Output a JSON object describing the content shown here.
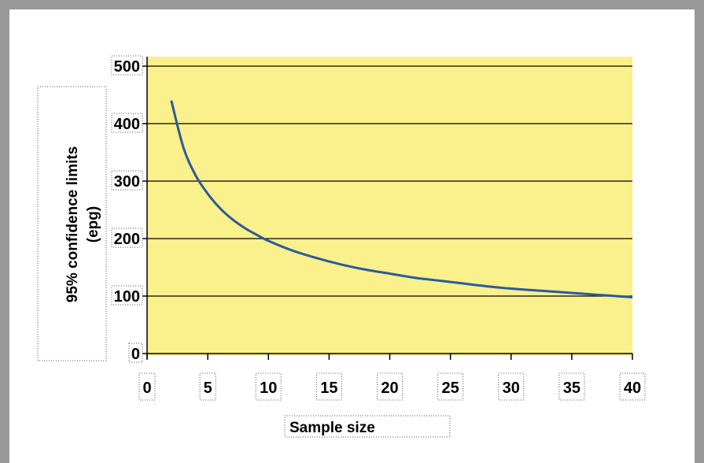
{
  "chart_data": {
    "type": "line",
    "xlabel": "Sample size",
    "ylabel_line1": "95% confidence limits",
    "ylabel_line2": "(epg)",
    "xlim": [
      0,
      40
    ],
    "ylim": [
      0,
      500
    ],
    "xticks": [
      0,
      5,
      10,
      15,
      20,
      25,
      30,
      35,
      40
    ],
    "yticks": [
      0,
      100,
      200,
      300,
      400,
      500
    ],
    "grid": "horizontal",
    "colors": {
      "plot_background": "#faf08c",
      "line": "#2a5a9c",
      "gridline": "#000000",
      "frame": "#999999"
    },
    "series": [
      {
        "x": [
          2,
          3,
          4,
          5,
          6,
          7,
          8,
          9,
          10,
          12,
          14,
          16,
          18,
          20,
          22,
          24,
          26,
          28,
          30,
          32,
          34,
          36,
          38,
          40
        ],
        "values": [
          440,
          358,
          310,
          278,
          253,
          234,
          219,
          207,
          196,
          179,
          166,
          155,
          146,
          139,
          132,
          127,
          122,
          117,
          113,
          110,
          107,
          104,
          101,
          98
        ]
      }
    ]
  }
}
